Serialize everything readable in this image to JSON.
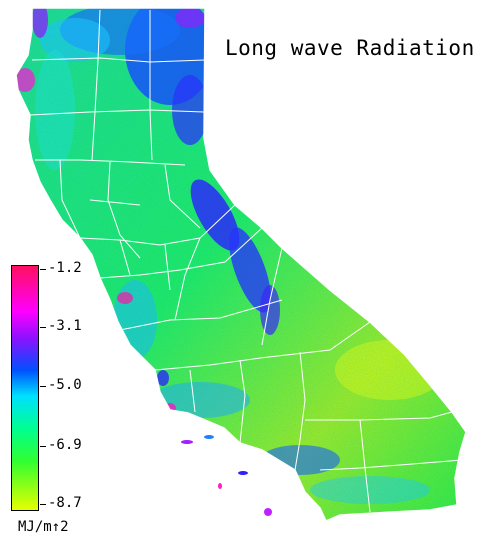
{
  "title": "Long wave Radiation",
  "legend": {
    "unit": "MJ/m↑2",
    "ticks": [
      "-1.2",
      "-3.1",
      "-5.0",
      "-6.9",
      "-8.7"
    ],
    "range": [
      -8.7,
      -1.2
    ],
    "stops": [
      {
        "color": "#ff1060",
        "value": -1.2
      },
      {
        "color": "#ff00ff",
        "value": -2.6
      },
      {
        "color": "#9010ff",
        "value": -3.4
      },
      {
        "color": "#0050ff",
        "value": -4.4
      },
      {
        "color": "#00e0ff",
        "value": -5.2
      },
      {
        "color": "#00ff90",
        "value": -6.2
      },
      {
        "color": "#30ff30",
        "value": -7.2
      },
      {
        "color": "#e6ff00",
        "value": -8.7
      }
    ]
  }
}
